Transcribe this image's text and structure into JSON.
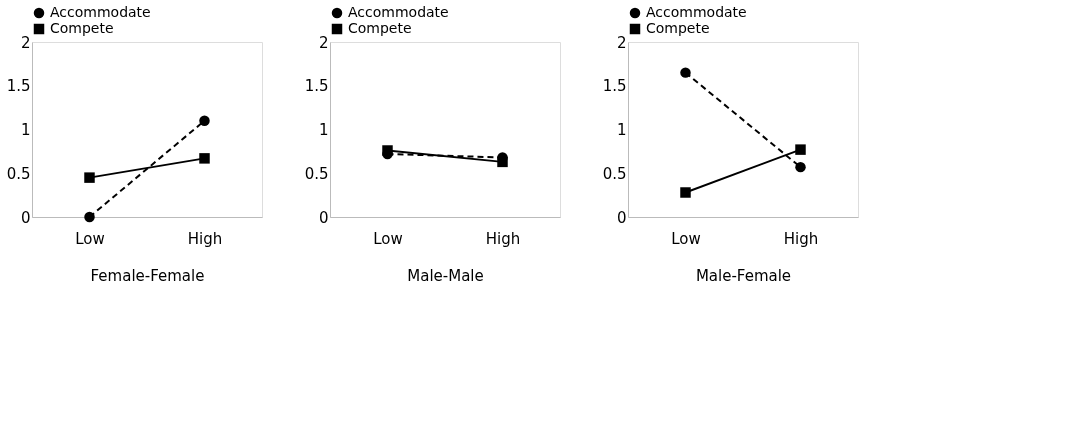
{
  "chart_data": [
    {
      "type": "line",
      "xlabel": "Female-Female",
      "categories": [
        "Low",
        "High"
      ],
      "ylim": [
        0,
        2
      ],
      "yticks": [
        0,
        0.5,
        1,
        1.5,
        2
      ],
      "grid": false,
      "legend": "top left",
      "series": [
        {
          "name": "Accommodate",
          "color": "#000000",
          "values": [
            0,
            1.1
          ],
          "marker": "circle",
          "line_style": "dashed"
        },
        {
          "name": "Compete",
          "color": "#000000",
          "values": [
            0.45,
            0.67
          ],
          "marker": "square",
          "line_style": "solid"
        }
      ]
    },
    {
      "type": "line",
      "xlabel": "Male-Male",
      "categories": [
        "Low",
        "High"
      ],
      "ylim": [
        0,
        2
      ],
      "yticks": [
        0,
        0.5,
        1,
        1.5,
        2
      ],
      "grid": false,
      "legend": "top left",
      "series": [
        {
          "name": "Accommodate",
          "color": "#000000",
          "values": [
            0.72,
            0.68
          ],
          "marker": "circle",
          "line_style": "dashed"
        },
        {
          "name": "Compete",
          "color": "#000000",
          "values": [
            0.76,
            0.63
          ],
          "marker": "square",
          "line_style": "solid"
        }
      ]
    },
    {
      "type": "line",
      "xlabel": "Male-Female",
      "categories": [
        "Low",
        "High"
      ],
      "ylim": [
        0,
        2
      ],
      "yticks": [
        0,
        0.5,
        1,
        1.5,
        2
      ],
      "grid": false,
      "legend": "top left",
      "series": [
        {
          "name": "Accommodate",
          "color": "#000000",
          "values": [
            1.65,
            0.57
          ],
          "marker": "circle",
          "line_style": "dashed"
        },
        {
          "name": "Compete",
          "color": "#000000",
          "values": [
            0.28,
            0.77
          ],
          "marker": "square",
          "line_style": "solid"
        }
      ]
    }
  ]
}
